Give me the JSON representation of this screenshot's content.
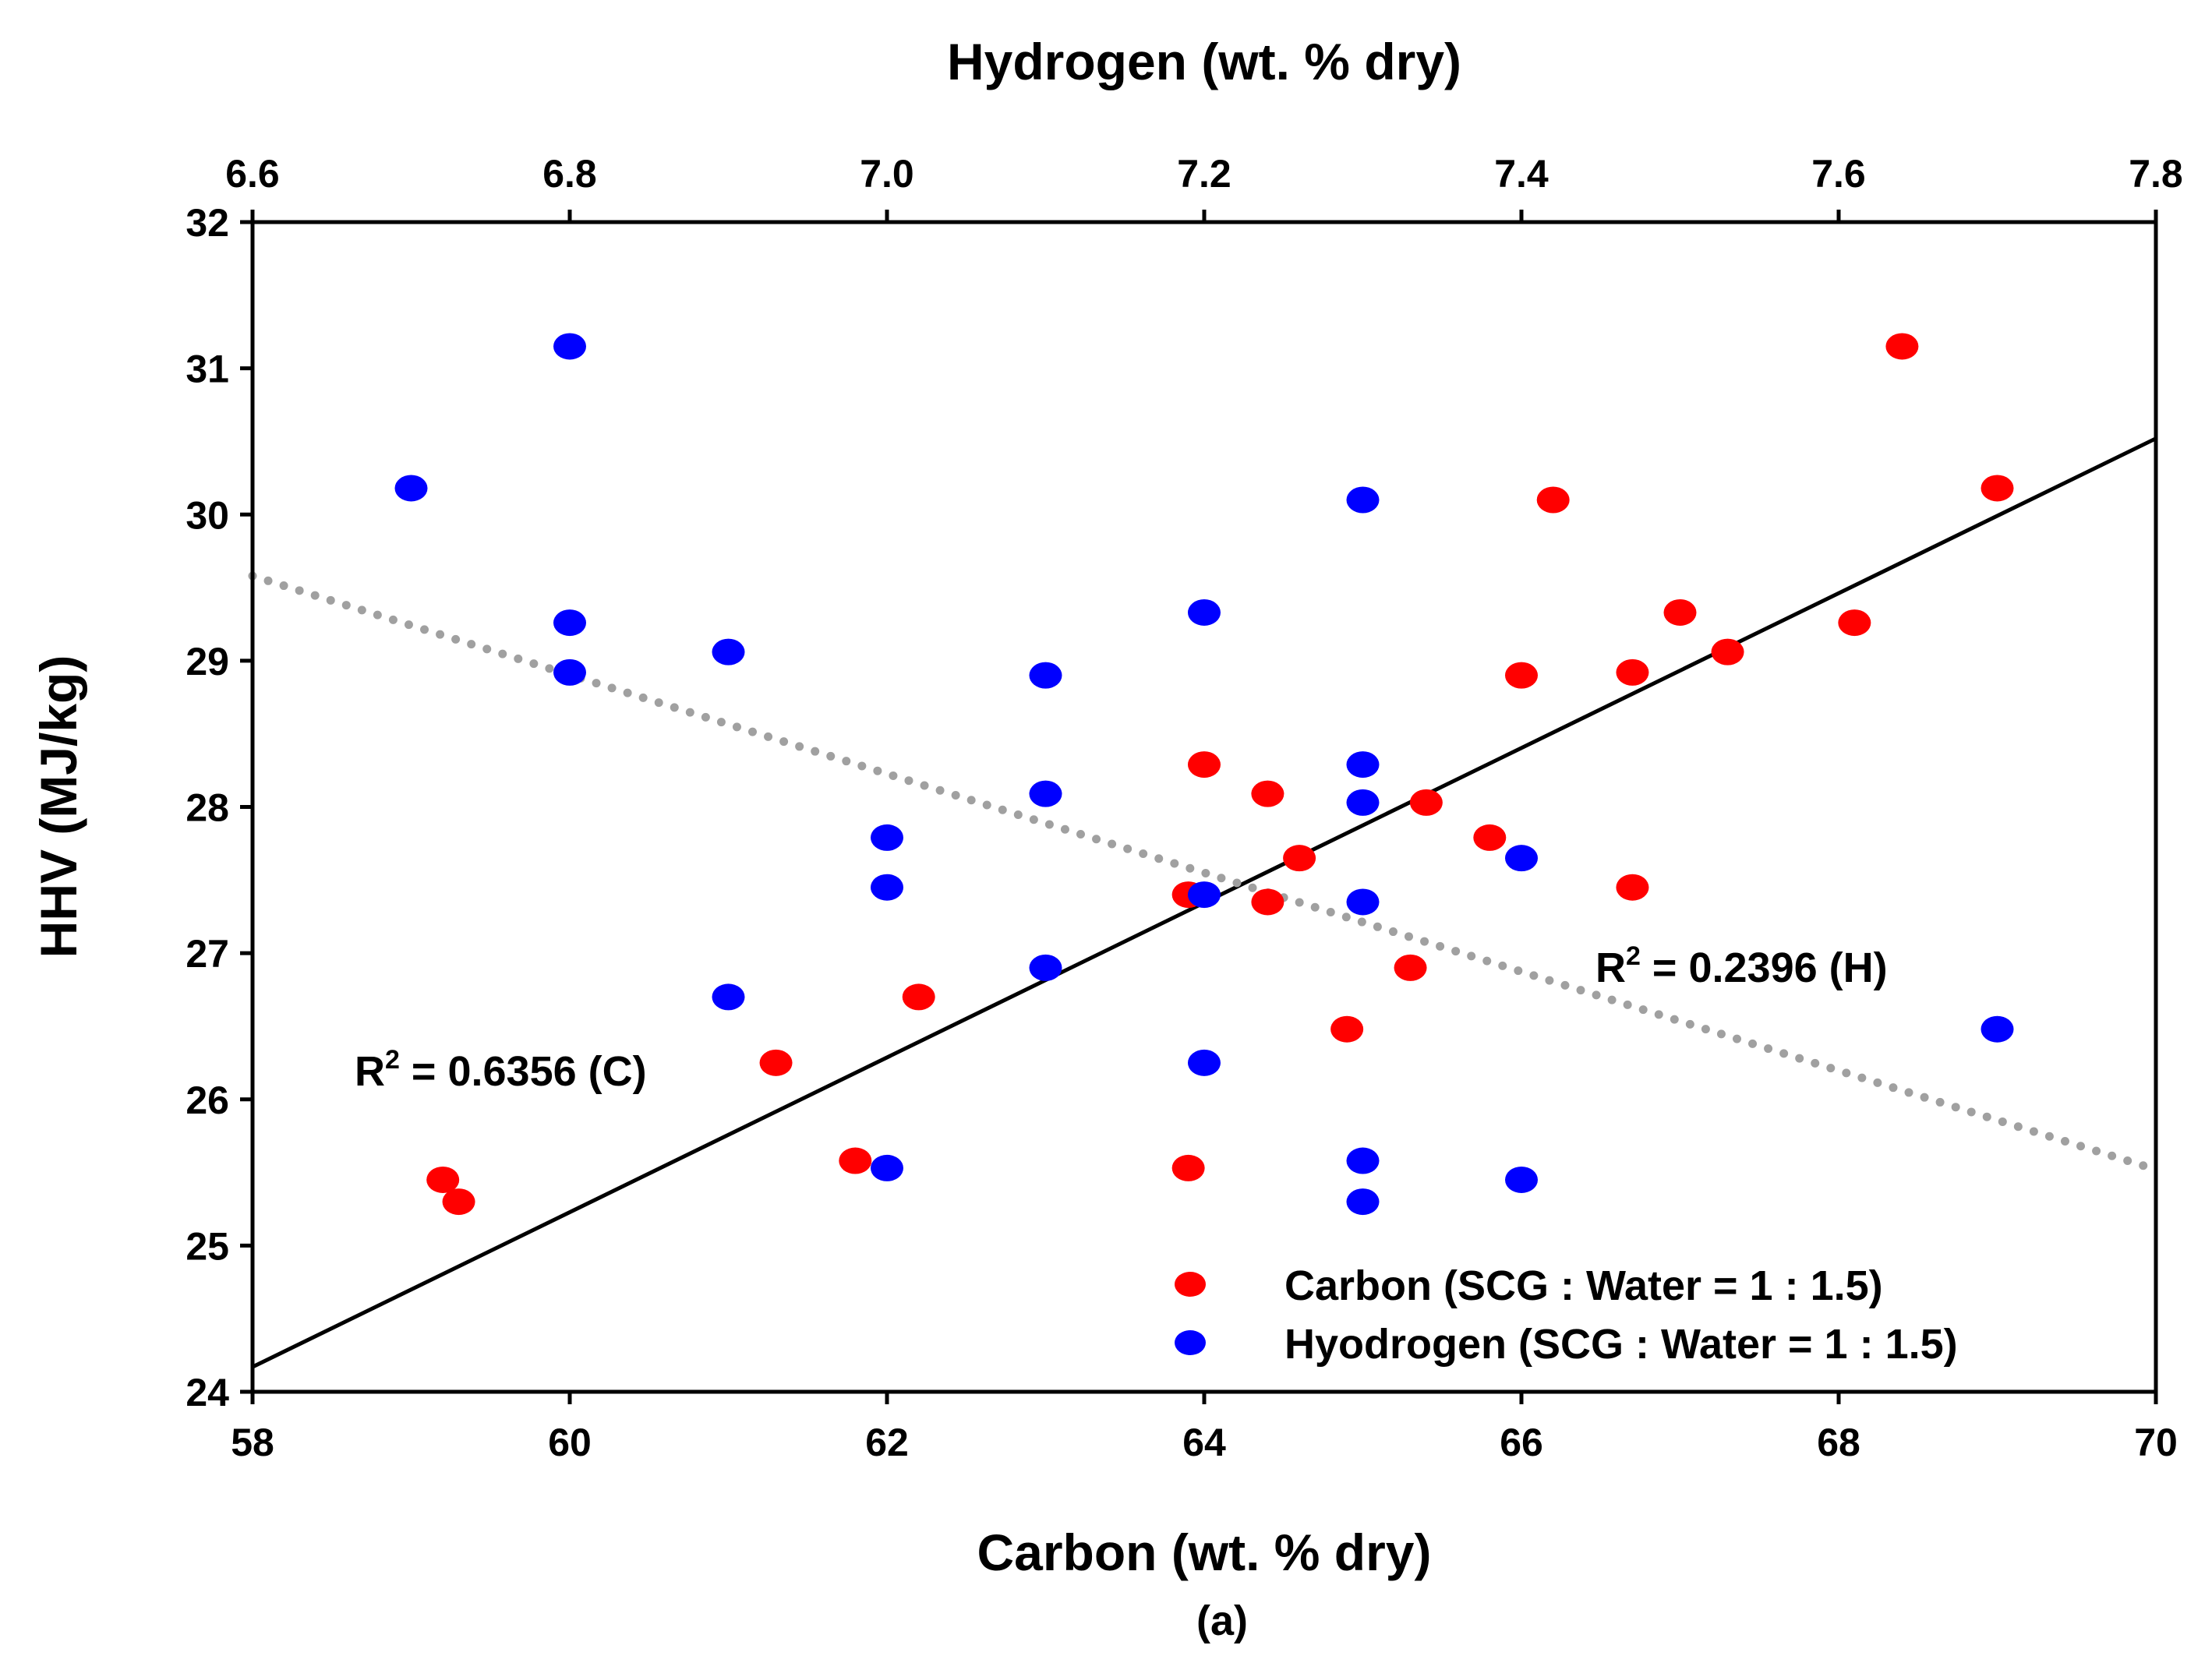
{
  "chart_data": {
    "type": "scatter",
    "title": "",
    "caption": "(a)",
    "xlabel": "Carbon (wt. % dry)",
    "x2label": "Hydrogen (wt. % dry)",
    "ylabel": "HHV (MJ/kg)",
    "xlim": [
      58,
      70
    ],
    "x2lim": [
      6.6,
      7.8
    ],
    "ylim": [
      24,
      32
    ],
    "xticks": [
      "58",
      "60",
      "62",
      "64",
      "66",
      "68",
      "70"
    ],
    "x2ticks": [
      "6.6",
      "6.8",
      "7.0",
      "7.2",
      "7.4",
      "7.6",
      "7.8"
    ],
    "yticks": [
      "24",
      "25",
      "26",
      "27",
      "28",
      "29",
      "30",
      "31",
      "32"
    ],
    "grid": false,
    "legend_position": "bottom-right",
    "series": [
      {
        "name": "Carbon (SCG : Water = 1 : 1.5)",
        "axis": "bottom",
        "color": "#ff0000",
        "points": [
          [
            59.2,
            25.45
          ],
          [
            59.3,
            25.3
          ],
          [
            61.3,
            26.25
          ],
          [
            61.8,
            25.58
          ],
          [
            62.2,
            26.7
          ],
          [
            63.9,
            27.4
          ],
          [
            63.9,
            25.53
          ],
          [
            64.0,
            28.29
          ],
          [
            64.4,
            28.09
          ],
          [
            64.4,
            27.35
          ],
          [
            64.6,
            27.65
          ],
          [
            64.9,
            26.48
          ],
          [
            65.3,
            26.9
          ],
          [
            65.4,
            28.03
          ],
          [
            65.8,
            27.79
          ],
          [
            66.0,
            28.9
          ],
          [
            66.2,
            30.1
          ],
          [
            66.7,
            28.92
          ],
          [
            66.7,
            27.45
          ],
          [
            67.0,
            29.33
          ],
          [
            67.3,
            29.06
          ],
          [
            68.1,
            29.26
          ],
          [
            68.4,
            31.15
          ],
          [
            69.0,
            30.18
          ]
        ]
      },
      {
        "name": "Hyodrogen (SCG : Water = 1 : 1.5)",
        "axis": "top",
        "color": "#0000ff",
        "points": [
          [
            6.7,
            30.18
          ],
          [
            6.8,
            31.15
          ],
          [
            6.8,
            29.26
          ],
          [
            6.8,
            28.92
          ],
          [
            6.9,
            29.06
          ],
          [
            6.9,
            26.7
          ],
          [
            7.0,
            27.79
          ],
          [
            7.0,
            27.45
          ],
          [
            7.0,
            25.53
          ],
          [
            7.1,
            28.9
          ],
          [
            7.1,
            28.09
          ],
          [
            7.1,
            26.9
          ],
          [
            7.2,
            29.33
          ],
          [
            7.2,
            27.4
          ],
          [
            7.2,
            26.25
          ],
          [
            7.3,
            30.1
          ],
          [
            7.3,
            28.29
          ],
          [
            7.3,
            28.03
          ],
          [
            7.3,
            27.35
          ],
          [
            7.3,
            25.58
          ],
          [
            7.3,
            25.3
          ],
          [
            7.4,
            27.65
          ],
          [
            7.4,
            25.45
          ],
          [
            7.7,
            26.48
          ]
        ]
      }
    ],
    "trendlines": [
      {
        "name": "carbon-fit",
        "axis": "bottom",
        "style": "solid",
        "color": "#000000",
        "x": [
          58,
          70
        ],
        "y": [
          24.17,
          30.52
        ]
      },
      {
        "name": "hydrogen-fit",
        "axis": "top",
        "style": "dotted",
        "color": "#a0a0a0",
        "x": [
          6.6,
          7.8
        ],
        "y": [
          29.58,
          25.52
        ]
      }
    ],
    "annotations": [
      {
        "name": "r2-carbon",
        "prefix": "R",
        "sup": "2",
        "text": " = 0.6356 (C)"
      },
      {
        "name": "r2-hydrogen",
        "prefix": "R",
        "sup": "2",
        "text": " = 0.2396 (H)"
      }
    ]
  }
}
